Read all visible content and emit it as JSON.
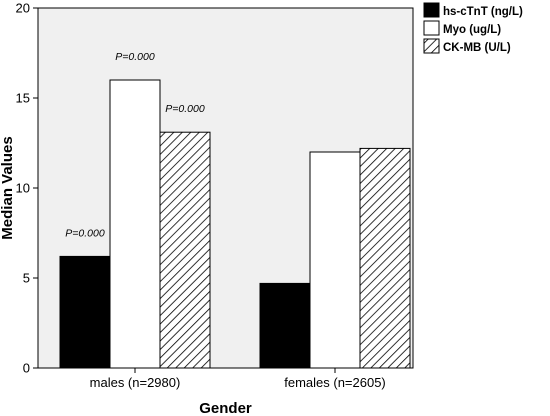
{
  "chart_data": {
    "type": "bar",
    "xlabel": "Gender",
    "ylabel": "Median Values",
    "ylim": [
      0,
      20
    ],
    "yticks": [
      0,
      5,
      10,
      15,
      20
    ],
    "categories": [
      "males (n=2980)",
      "females (n=2605)"
    ],
    "series": [
      {
        "name": "hs-cTnT (ng/L)",
        "values": [
          6.2,
          4.7
        ],
        "fill": "#000000"
      },
      {
        "name": "Myo (ug/L)",
        "values": [
          16.0,
          12.0
        ],
        "fill": "#ffffff"
      },
      {
        "name": "CK-MB (U/L)",
        "values": [
          13.1,
          12.2
        ],
        "fill": "hatch"
      }
    ],
    "annotations": [
      {
        "category": 0,
        "series": 0,
        "text": "P=0.000"
      },
      {
        "category": 0,
        "series": 1,
        "text": "P=0.000"
      },
      {
        "category": 0,
        "series": 2,
        "text": "P=0.000"
      }
    ],
    "grid": false,
    "legend_position": "top-right",
    "plot_background": "#f0f0f0"
  }
}
